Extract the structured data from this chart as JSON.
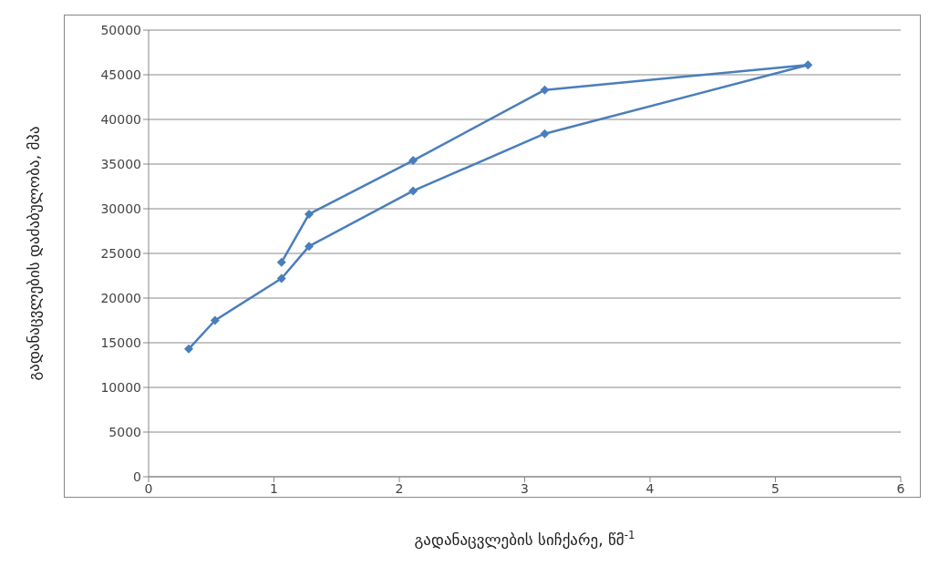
{
  "chart_data": {
    "type": "line",
    "xlabel": "გადანაცვლების სიჩქარე, წმ$^{-1}$",
    "ylabel": "გადანაცვლების დაძაბულობა, მპა",
    "x": [
      0.32,
      0.53,
      1.06,
      1.28,
      2.11,
      3.16,
      5.26,
      3.16,
      2.11,
      1.28,
      1.06
    ],
    "series": [
      {
        "color": "#4a7ebb",
        "values": [
          14300,
          17500,
          22200,
          25800,
          32000,
          38400,
          46100,
          43300,
          35400,
          29400,
          24000
        ]
      }
    ],
    "xlim": [
      0,
      6
    ],
    "xticks": [
      0,
      1,
      2,
      3,
      4,
      5,
      6
    ],
    "ylim": [
      0,
      50000
    ],
    "yticks": [
      0,
      5000,
      10000,
      15000,
      20000,
      25000,
      30000,
      35000,
      40000,
      45000,
      50000
    ],
    "grid": "y",
    "legend": false,
    "marker": "diamond",
    "line_style": "solid"
  }
}
